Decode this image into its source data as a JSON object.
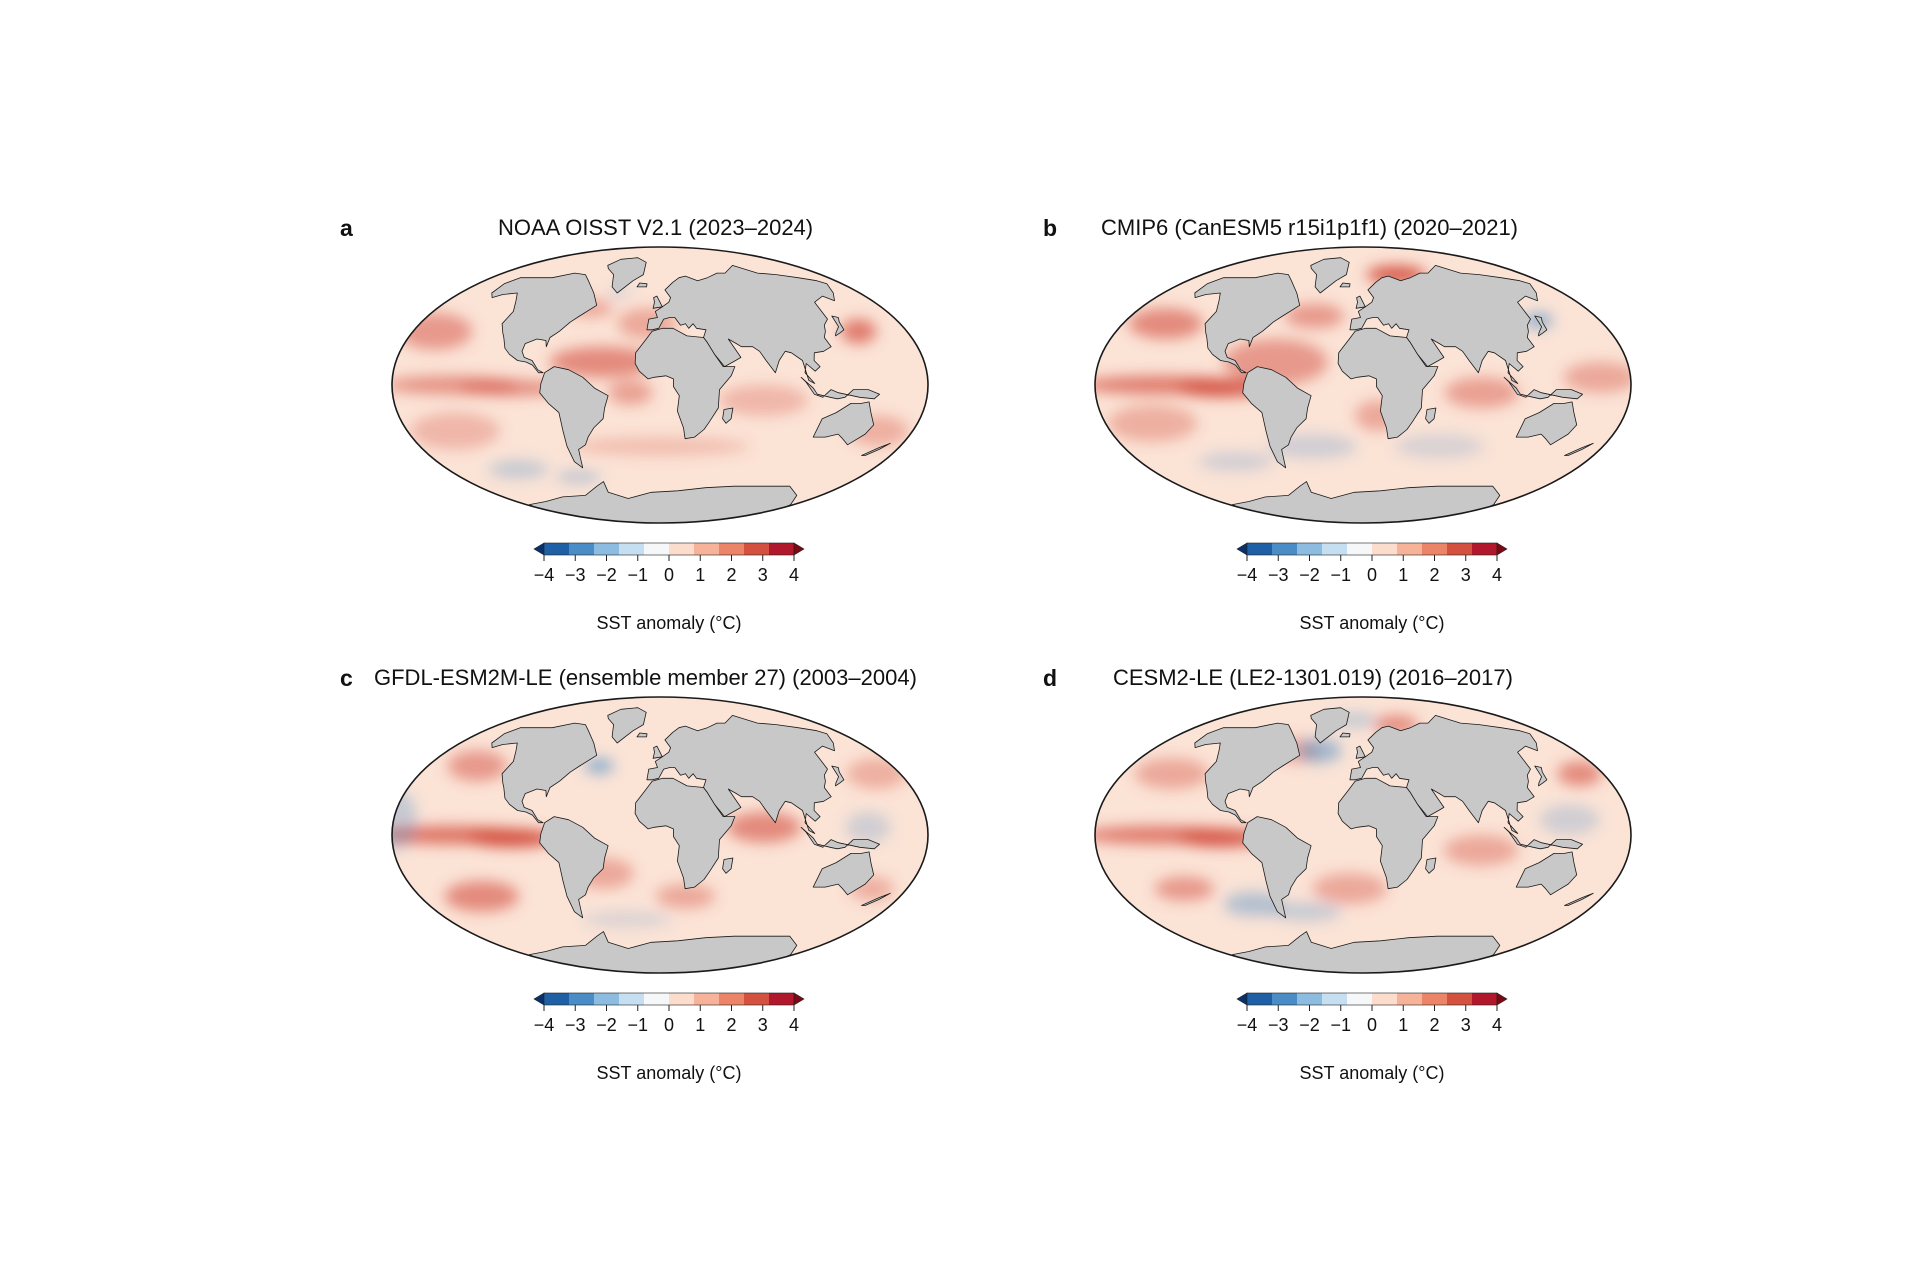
{
  "colors": {
    "land": "#c8c8c8",
    "ocean_base": "#fbe3d6",
    "coast": "#1a1a1a",
    "scale": [
      "#08306b",
      "#1f5fa5",
      "#4a8dc6",
      "#8cbce0",
      "#c5dff0",
      "#f5f7f9",
      "#fcdccc",
      "#f6b39a",
      "#ec8468",
      "#d4503f",
      "#b2182b",
      "#7f0712"
    ]
  },
  "colorbar": {
    "ticks": [
      "−4",
      "−3",
      "−2",
      "−1",
      "0",
      "1",
      "2",
      "3",
      "4"
    ],
    "label": "SST anomaly (°C)"
  },
  "panels": [
    {
      "letter": "a",
      "title": "NOAA OISST V2.1 (2023–2024)",
      "warm_spots": [
        [
          -140,
          0,
          45,
          6,
          0.55
        ],
        [
          -100,
          -2,
          35,
          5,
          0.6
        ],
        [
          -170,
          35,
          25,
          12,
          0.5
        ],
        [
          -150,
          -30,
          30,
          12,
          0.3
        ],
        [
          -40,
          15,
          35,
          10,
          0.6
        ],
        [
          -20,
          -5,
          15,
          8,
          0.45
        ],
        [
          -10,
          40,
          20,
          10,
          0.4
        ],
        [
          150,
          35,
          12,
          8,
          0.7
        ],
        [
          70,
          -10,
          30,
          10,
          0.3
        ],
        [
          160,
          -30,
          20,
          10,
          0.35
        ],
        [
          -60,
          50,
          15,
          6,
          0.4
        ],
        [
          0,
          -40,
          60,
          6,
          0.25
        ]
      ],
      "cool_spots": [
        [
          -130,
          -55,
          20,
          6,
          0.3
        ],
        [
          -80,
          -60,
          15,
          4,
          0.35
        ],
        [
          -40,
          60,
          8,
          4,
          0.2
        ]
      ]
    },
    {
      "letter": "b",
      "title": "CMIP6 (CanESM5 r15i1p1f1) (2020–2021)",
      "warm_spots": [
        [
          -135,
          0,
          55,
          6,
          0.7
        ],
        [
          -95,
          -2,
          30,
          6,
          0.85
        ],
        [
          -155,
          40,
          25,
          10,
          0.6
        ],
        [
          -60,
          15,
          35,
          15,
          0.5
        ],
        [
          -40,
          45,
          20,
          8,
          0.5
        ],
        [
          40,
          72,
          20,
          6,
          0.9
        ],
        [
          -150,
          -25,
          30,
          12,
          0.35
        ],
        [
          80,
          -5,
          25,
          10,
          0.45
        ],
        [
          160,
          5,
          25,
          10,
          0.4
        ],
        [
          10,
          -20,
          15,
          10,
          0.4
        ]
      ],
      "cool_spots": [
        [
          140,
          42,
          10,
          5,
          0.6
        ],
        [
          -40,
          -40,
          30,
          8,
          0.25
        ],
        [
          60,
          -40,
          30,
          8,
          0.2
        ],
        [
          -110,
          -50,
          25,
          6,
          0.25
        ]
      ]
    },
    {
      "letter": "c",
      "title": "GFDL-ESM2M-LE (ensemble member 27) (2003–2004)",
      "warm_spots": [
        [
          -140,
          0,
          55,
          6,
          0.75
        ],
        [
          -100,
          -2,
          30,
          6,
          0.95
        ],
        [
          -150,
          45,
          20,
          10,
          0.5
        ],
        [
          -140,
          -40,
          25,
          10,
          0.6
        ],
        [
          -40,
          -25,
          20,
          10,
          0.4
        ],
        [
          70,
          5,
          25,
          10,
          0.6
        ],
        [
          20,
          -40,
          20,
          8,
          0.4
        ],
        [
          160,
          -35,
          15,
          8,
          0.35
        ],
        [
          170,
          40,
          20,
          10,
          0.35
        ]
      ],
      "cool_spots": [
        [
          -50,
          45,
          10,
          5,
          0.6
        ],
        [
          -30,
          -55,
          30,
          5,
          0.2
        ],
        [
          140,
          5,
          15,
          10,
          0.25
        ],
        [
          -180,
          10,
          15,
          20,
          0.3
        ]
      ]
    },
    {
      "letter": "d",
      "title": "CESM2-LE (LE2-1301.019) (2016–2017)",
      "warm_spots": [
        [
          -135,
          0,
          55,
          6,
          0.7
        ],
        [
          -95,
          -2,
          30,
          6,
          0.85
        ],
        [
          -150,
          40,
          25,
          10,
          0.4
        ],
        [
          -135,
          -35,
          20,
          8,
          0.5
        ],
        [
          -10,
          -35,
          25,
          10,
          0.4
        ],
        [
          80,
          -10,
          25,
          10,
          0.4
        ],
        [
          170,
          40,
          15,
          8,
          0.6
        ],
        [
          40,
          72,
          15,
          6,
          0.6
        ],
        [
          -60,
          55,
          15,
          8,
          0.4
        ]
      ],
      "cool_spots": [
        [
          -40,
          55,
          15,
          8,
          0.5
        ],
        [
          -90,
          -45,
          20,
          8,
          0.4
        ],
        [
          -50,
          -50,
          25,
          6,
          0.3
        ],
        [
          140,
          10,
          20,
          10,
          0.25
        ],
        [
          -10,
          75,
          15,
          5,
          0.3
        ]
      ]
    }
  ]
}
